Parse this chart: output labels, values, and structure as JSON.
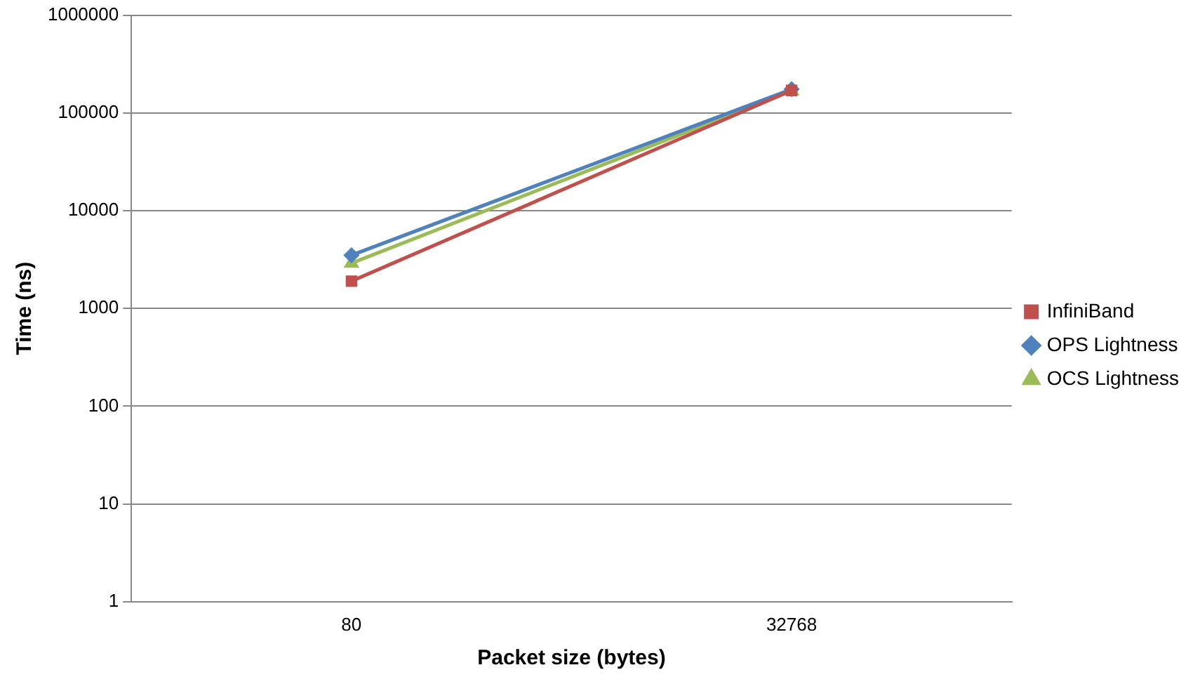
{
  "chart_data": {
    "type": "line",
    "xlabel": "Packet size (bytes)",
    "ylabel": "Time (ns)",
    "categories": [
      "80",
      "32768"
    ],
    "series": [
      {
        "name": "InfiniBand",
        "color": "#c0504d",
        "marker": "square",
        "values": [
          1900,
          170000
        ]
      },
      {
        "name": "OPS Lightness",
        "color": "#4f81bd",
        "marker": "diamond",
        "values": [
          3500,
          175000
        ]
      },
      {
        "name": "OCS Lightness",
        "color": "#9bbb59",
        "marker": "triangle",
        "values": [
          2900,
          168000
        ]
      }
    ],
    "log": "y",
    "ylim": [
      1,
      1000000
    ],
    "yticks": [
      1,
      10,
      100,
      1000,
      10000,
      100000,
      1000000
    ],
    "grid": "y",
    "legend": "right"
  }
}
